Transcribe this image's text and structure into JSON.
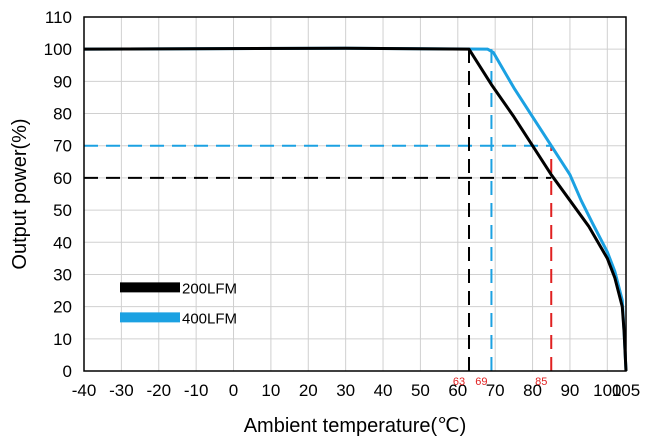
{
  "chart_data": {
    "type": "line",
    "title": "",
    "xlabel": "Ambient temperature(℃)",
    "ylabel": "Output power(%)",
    "xlim": [
      -40,
      105
    ],
    "ylim": [
      0,
      110
    ],
    "x_ticks": [
      -40,
      -30,
      -20,
      -10,
      0,
      10,
      20,
      30,
      40,
      50,
      60,
      70,
      80,
      90,
      100,
      105
    ],
    "x_tick_labels": [
      "-40",
      "-30",
      "-20",
      "-10",
      "0",
      "10",
      "20",
      "30",
      "40",
      "50",
      "60",
      "70",
      "80",
      "90",
      "100",
      "105"
    ],
    "y_ticks": [
      0,
      10,
      20,
      30,
      40,
      50,
      60,
      70,
      80,
      90,
      100,
      110
    ],
    "y_tick_labels": [
      "0",
      "10",
      "20",
      "30",
      "40",
      "50",
      "60",
      "70",
      "80",
      "90",
      "100",
      "110"
    ],
    "grid": true,
    "legend": {
      "position": "bottom-left"
    },
    "series": [
      {
        "name": "200LFM",
        "color": "#000000",
        "points": [
          [
            -40,
            100
          ],
          [
            30,
            100.3
          ],
          [
            63,
            100
          ],
          [
            69,
            89
          ],
          [
            75,
            79
          ],
          [
            80,
            70
          ],
          [
            85,
            61
          ],
          [
            90,
            53
          ],
          [
            95,
            45
          ],
          [
            100,
            35
          ],
          [
            102,
            29
          ],
          [
            104,
            20
          ],
          [
            104.5,
            12
          ],
          [
            105,
            0
          ]
        ]
      },
      {
        "name": "400LFM",
        "color": "#1ba1e2",
        "points": [
          [
            -40,
            100
          ],
          [
            30,
            100.3
          ],
          [
            68,
            100
          ],
          [
            69.5,
            99
          ],
          [
            75,
            88
          ],
          [
            80,
            79
          ],
          [
            85,
            70
          ],
          [
            90,
            61
          ],
          [
            93,
            53
          ],
          [
            96,
            46
          ],
          [
            100,
            37
          ],
          [
            102,
            31
          ],
          [
            104,
            22
          ],
          [
            104.5,
            12
          ],
          [
            105,
            0
          ]
        ]
      }
    ],
    "reference_lines": [
      {
        "y": 70,
        "x_from": -40,
        "x_to": 85,
        "color": "#1ba1e2"
      },
      {
        "y": 60,
        "x_from": -40,
        "x_to": 85,
        "color": "#000000"
      },
      {
        "x": 63,
        "y_from": 0,
        "y_to": 100,
        "color": "#000000"
      },
      {
        "x": 69,
        "y_from": 0,
        "y_to": 100,
        "color": "#1ba1e2"
      },
      {
        "x": 85,
        "y_from": 0,
        "y_to": 70,
        "color": "#e02020"
      }
    ],
    "annotations": [
      {
        "text": "63",
        "x": 63,
        "color": "#e02020"
      },
      {
        "text": "69",
        "x": 69,
        "color": "#e02020"
      },
      {
        "text": "85",
        "x": 85,
        "color": "#e02020"
      }
    ]
  }
}
